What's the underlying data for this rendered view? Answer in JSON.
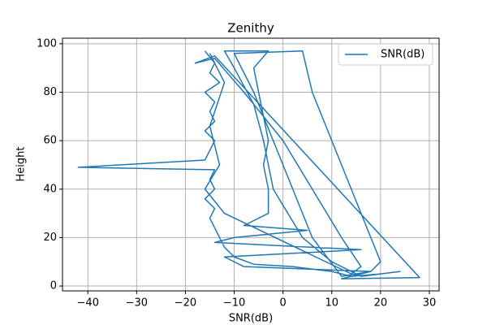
{
  "chart_data": {
    "type": "line",
    "title": "Zenithy",
    "x_label": "SNR(dB)",
    "y_label": "Height",
    "xlim": [
      -45.2,
      32
    ],
    "ylim": [
      -2,
      102.3
    ],
    "xticks": [
      {
        "value": -40,
        "label": "−40"
      },
      {
        "value": -30,
        "label": "−30"
      },
      {
        "value": -20,
        "label": "−20"
      },
      {
        "value": -10,
        "label": "−10"
      },
      0,
      10,
      20,
      30
    ],
    "yticks": [
      0,
      20,
      40,
      60,
      80,
      100
    ],
    "grid": true,
    "legend": "upper right",
    "series": [
      {
        "name": "SNR(dB)",
        "color": "#1f77b4",
        "x": [
          -16,
          -14,
          -15,
          -13,
          -16,
          -14,
          -15,
          -14,
          -16,
          -14,
          -15,
          -16,
          -42,
          -14,
          -15,
          -14,
          -16,
          -14,
          -15,
          -14,
          -13,
          -12,
          -10,
          -6,
          2,
          10,
          14,
          20,
          24,
          16,
          10,
          4,
          -2,
          -4,
          -6,
          -10,
          -12,
          -3,
          -6,
          -5,
          -4,
          -3,
          -4,
          -3,
          -3,
          -8,
          5,
          -10,
          -14,
          16,
          -12,
          -8,
          18,
          12,
          6,
          2,
          -2,
          -6,
          -10,
          4,
          6,
          10,
          14,
          18,
          20,
          18,
          12,
          28,
          -14,
          -18,
          -14,
          -8,
          0,
          6,
          12,
          16,
          14,
          -12,
          -16,
          -13,
          -15,
          -12,
          -15
        ],
        "values": [
          97,
          92,
          88,
          84,
          80,
          76,
          72,
          68,
          64,
          60,
          56,
          52,
          49,
          48,
          44,
          40,
          36,
          32,
          28,
          24,
          20,
          16,
          12,
          9,
          8,
          6,
          4,
          5,
          6,
          4,
          10,
          20,
          40,
          60,
          75,
          90,
          97,
          97,
          90,
          80,
          70,
          60,
          50,
          40,
          30,
          25,
          23,
          20,
          18,
          15,
          12,
          8,
          6,
          4,
          20,
          40,
          60,
          80,
          96,
          97,
          80,
          60,
          40,
          20,
          10,
          6,
          3,
          3.5,
          95,
          92,
          94,
          80,
          60,
          40,
          20,
          8,
          5,
          30,
          40,
          50,
          66,
          84,
          96
        ]
      }
    ]
  }
}
